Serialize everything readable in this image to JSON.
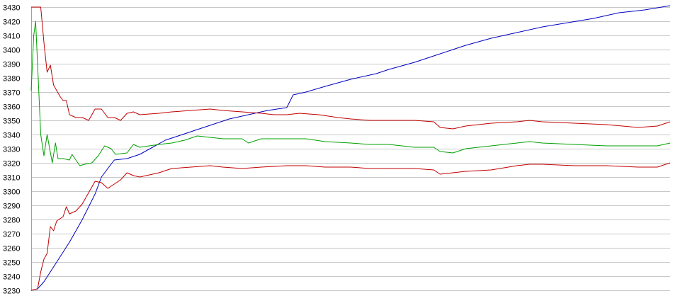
{
  "chart_data": {
    "type": "line",
    "title": "",
    "xlabel": "",
    "ylabel": "",
    "x_tick_labels_shown": false,
    "ylim": [
      3230,
      3430
    ],
    "yticks": [
      3230,
      3240,
      3250,
      3260,
      3270,
      3280,
      3290,
      3300,
      3310,
      3320,
      3330,
      3340,
      3350,
      3360,
      3370,
      3380,
      3390,
      3400,
      3410,
      3420,
      3430
    ],
    "xlim": [
      0,
      100
    ],
    "grid": "horizontal",
    "legend": "none",
    "series": [
      {
        "color": "#0000c0",
        "points": [
          [
            0,
            3230
          ],
          [
            1,
            3231
          ],
          [
            2,
            3236
          ],
          [
            4,
            3250
          ],
          [
            6,
            3264
          ],
          [
            8,
            3280
          ],
          [
            10,
            3298
          ],
          [
            11,
            3310
          ],
          [
            12,
            3316
          ],
          [
            13,
            3322
          ],
          [
            15,
            3323
          ],
          [
            17,
            3326
          ],
          [
            19,
            3331
          ],
          [
            21,
            3336
          ],
          [
            23,
            3339
          ],
          [
            25,
            3342
          ],
          [
            27,
            3345
          ],
          [
            29,
            3348
          ],
          [
            31,
            3351
          ],
          [
            33,
            3353
          ],
          [
            35,
            3355
          ],
          [
            37,
            3357
          ],
          [
            40,
            3359
          ],
          [
            41,
            3368
          ],
          [
            43,
            3370
          ],
          [
            46,
            3374
          ],
          [
            50,
            3379
          ],
          [
            54,
            3383
          ],
          [
            56,
            3386
          ],
          [
            60,
            3391
          ],
          [
            64,
            3397
          ],
          [
            68,
            3403
          ],
          [
            72,
            3408
          ],
          [
            76,
            3412
          ],
          [
            80,
            3416
          ],
          [
            84,
            3419
          ],
          [
            88,
            3422
          ],
          [
            92,
            3426
          ],
          [
            96,
            3428
          ],
          [
            100,
            3431
          ]
        ]
      },
      {
        "color": "#00a000",
        "points": [
          [
            0,
            3371
          ],
          [
            0.4,
            3410
          ],
          [
            0.7,
            3420
          ],
          [
            1,
            3390
          ],
          [
            1.5,
            3340
          ],
          [
            2,
            3325
          ],
          [
            2.5,
            3340
          ],
          [
            3.3,
            3320
          ],
          [
            3.8,
            3334
          ],
          [
            4.2,
            3323
          ],
          [
            5,
            3323
          ],
          [
            6,
            3322
          ],
          [
            6.4,
            3326
          ],
          [
            7.6,
            3318
          ],
          [
            8.4,
            3319
          ],
          [
            9.5,
            3320
          ],
          [
            10.5,
            3325
          ],
          [
            11.5,
            3332
          ],
          [
            12.5,
            3330
          ],
          [
            13.2,
            3326
          ],
          [
            15,
            3327
          ],
          [
            16,
            3333
          ],
          [
            17,
            3331
          ],
          [
            20,
            3333
          ],
          [
            22,
            3334
          ],
          [
            24,
            3336
          ],
          [
            26,
            3339
          ],
          [
            28,
            3338
          ],
          [
            30,
            3337
          ],
          [
            33,
            3337
          ],
          [
            34,
            3334
          ],
          [
            36,
            3337
          ],
          [
            40,
            3337
          ],
          [
            43,
            3337
          ],
          [
            46,
            3335
          ],
          [
            50,
            3334
          ],
          [
            53,
            3333
          ],
          [
            56,
            3333
          ],
          [
            60,
            3331
          ],
          [
            63,
            3331
          ],
          [
            64,
            3328
          ],
          [
            66,
            3327
          ],
          [
            68,
            3330
          ],
          [
            72,
            3332
          ],
          [
            76,
            3334
          ],
          [
            78,
            3335
          ],
          [
            80,
            3334
          ],
          [
            85,
            3333
          ],
          [
            90,
            3332
          ],
          [
            95,
            3332
          ],
          [
            98,
            3332
          ],
          [
            100,
            3334
          ]
        ]
      },
      {
        "color": "#c00000",
        "points": [
          [
            0,
            3430
          ],
          [
            1,
            3430
          ],
          [
            1.5,
            3430
          ],
          [
            2,
            3405
          ],
          [
            2.5,
            3384
          ],
          [
            3,
            3389
          ],
          [
            3.5,
            3375
          ],
          [
            4.5,
            3367
          ],
          [
            5,
            3364
          ],
          [
            5.5,
            3364
          ],
          [
            6,
            3354
          ],
          [
            7,
            3352
          ],
          [
            8,
            3352
          ],
          [
            9,
            3350
          ],
          [
            10,
            3358
          ],
          [
            11,
            3358
          ],
          [
            12,
            3352
          ],
          [
            13,
            3352
          ],
          [
            14,
            3350
          ],
          [
            15,
            3355
          ],
          [
            16,
            3356
          ],
          [
            17,
            3354
          ],
          [
            20,
            3355
          ],
          [
            22,
            3356
          ],
          [
            25,
            3357
          ],
          [
            28,
            3358
          ],
          [
            30,
            3357
          ],
          [
            33,
            3356
          ],
          [
            36,
            3355
          ],
          [
            38,
            3354
          ],
          [
            40,
            3354
          ],
          [
            42,
            3355
          ],
          [
            45,
            3354
          ],
          [
            48,
            3352
          ],
          [
            50,
            3351
          ],
          [
            53,
            3350
          ],
          [
            56,
            3350
          ],
          [
            60,
            3350
          ],
          [
            63,
            3349
          ],
          [
            64,
            3345
          ],
          [
            66,
            3344
          ],
          [
            68,
            3346
          ],
          [
            72,
            3348
          ],
          [
            76,
            3349
          ],
          [
            78,
            3350
          ],
          [
            80,
            3349
          ],
          [
            85,
            3348
          ],
          [
            90,
            3347
          ],
          [
            95,
            3345
          ],
          [
            98,
            3346
          ],
          [
            100,
            3349
          ]
        ]
      },
      {
        "color": "#c00000",
        "points": [
          [
            0,
            3230
          ],
          [
            1,
            3231
          ],
          [
            1.5,
            3243
          ],
          [
            2,
            3252
          ],
          [
            2.5,
            3256
          ],
          [
            3,
            3275
          ],
          [
            3.5,
            3272
          ],
          [
            4,
            3279
          ],
          [
            5,
            3282
          ],
          [
            5.5,
            3289
          ],
          [
            6,
            3284
          ],
          [
            7,
            3286
          ],
          [
            8,
            3291
          ],
          [
            9,
            3299
          ],
          [
            10,
            3307
          ],
          [
            11,
            3306
          ],
          [
            12,
            3302
          ],
          [
            13,
            3305
          ],
          [
            14,
            3308
          ],
          [
            15,
            3313
          ],
          [
            16,
            3311
          ],
          [
            17,
            3310
          ],
          [
            20,
            3313
          ],
          [
            22,
            3316
          ],
          [
            25,
            3317
          ],
          [
            28,
            3318
          ],
          [
            30,
            3317
          ],
          [
            33,
            3316
          ],
          [
            36,
            3317
          ],
          [
            40,
            3318
          ],
          [
            43,
            3318
          ],
          [
            46,
            3317
          ],
          [
            50,
            3317
          ],
          [
            53,
            3316
          ],
          [
            56,
            3316
          ],
          [
            60,
            3316
          ],
          [
            63,
            3315
          ],
          [
            64,
            3312
          ],
          [
            66,
            3313
          ],
          [
            68,
            3314
          ],
          [
            72,
            3315
          ],
          [
            76,
            3318
          ],
          [
            78,
            3319
          ],
          [
            80,
            3319
          ],
          [
            85,
            3318
          ],
          [
            90,
            3318
          ],
          [
            95,
            3317
          ],
          [
            98,
            3317
          ],
          [
            100,
            3320
          ]
        ]
      }
    ]
  }
}
